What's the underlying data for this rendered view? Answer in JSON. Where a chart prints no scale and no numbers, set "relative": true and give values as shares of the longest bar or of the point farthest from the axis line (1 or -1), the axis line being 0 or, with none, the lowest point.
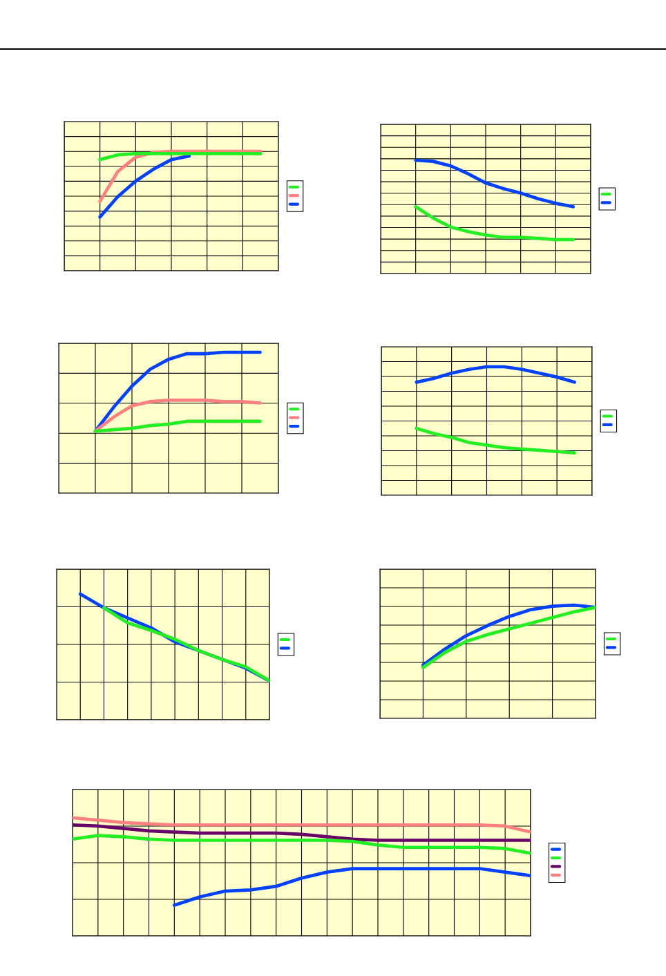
{
  "chart_data": [
    {
      "type": "line",
      "relative": true,
      "grid": true,
      "marker": "none",
      "line_style": "solid",
      "categories": [
        null,
        null,
        null,
        null,
        null,
        null,
        null,
        null,
        null,
        null,
        null,
        null,
        null
      ],
      "series": [
        {
          "color": "#22ee22",
          "values": [
            null,
            null,
            0.93,
            0.97,
            0.98,
            0.98,
            0.98,
            0.98,
            0.98,
            0.98,
            0.98,
            0.98,
            null
          ]
        },
        {
          "color": "#ff8080",
          "values": [
            null,
            null,
            0.58,
            0.83,
            0.95,
            0.99,
            1.0,
            1.0,
            1.0,
            1.0,
            1.0,
            1.0,
            null
          ]
        },
        {
          "color": "#0040ff",
          "values": [
            null,
            null,
            0.45,
            0.62,
            0.75,
            0.85,
            0.93,
            0.96,
            null,
            null,
            null,
            null,
            null
          ]
        }
      ]
    },
    {
      "type": "line",
      "relative": true,
      "grid": true,
      "marker": "none",
      "line_style": "solid",
      "categories": [
        null,
        null,
        null,
        null,
        null,
        null,
        null,
        null,
        null,
        null,
        null,
        null,
        null
      ],
      "series": [
        {
          "color": "#22ee22",
          "values": [
            null,
            null,
            0.59,
            0.49,
            0.41,
            0.37,
            0.34,
            0.32,
            0.32,
            0.31,
            0.3,
            0.3,
            null
          ]
        },
        {
          "color": "#0040ff",
          "values": [
            null,
            null,
            1.0,
            0.99,
            0.95,
            0.88,
            0.8,
            0.75,
            0.71,
            0.66,
            0.62,
            0.59,
            null
          ]
        }
      ]
    },
    {
      "type": "line",
      "relative": true,
      "grid": true,
      "marker": "none",
      "line_style": "solid",
      "categories": [
        null,
        null,
        null,
        null,
        null,
        null,
        null,
        null,
        null,
        null,
        null,
        null,
        null
      ],
      "series": [
        {
          "color": "#22ee22",
          "values": [
            null,
            null,
            0.44,
            0.45,
            0.46,
            0.48,
            0.49,
            0.51,
            0.51,
            0.51,
            0.51,
            0.51,
            null
          ]
        },
        {
          "color": "#ff8080",
          "values": [
            null,
            null,
            0.44,
            0.54,
            0.62,
            0.65,
            0.66,
            0.66,
            0.66,
            0.65,
            0.65,
            0.64,
            null
          ]
        },
        {
          "color": "#0040ff",
          "values": [
            null,
            null,
            0.44,
            0.61,
            0.76,
            0.88,
            0.95,
            0.99,
            0.99,
            1.0,
            1.0,
            1.0,
            null
          ]
        }
      ]
    },
    {
      "type": "line",
      "relative": true,
      "grid": true,
      "marker": "none",
      "line_style": "solid",
      "categories": [
        null,
        null,
        null,
        null,
        null,
        null,
        null,
        null,
        null,
        null,
        null,
        null,
        null
      ],
      "series": [
        {
          "color": "#22ee22",
          "values": [
            null,
            null,
            0.52,
            0.48,
            0.45,
            0.41,
            0.39,
            0.37,
            0.36,
            0.35,
            0.34,
            0.33,
            null
          ]
        },
        {
          "color": "#0040ff",
          "values": [
            null,
            null,
            0.88,
            0.91,
            0.95,
            0.98,
            1.0,
            1.0,
            0.98,
            0.95,
            0.92,
            0.88,
            null
          ]
        }
      ]
    },
    {
      "type": "line",
      "relative": true,
      "grid": true,
      "marker": "none",
      "line_style": "solid",
      "categories": [
        null,
        null,
        null,
        null,
        null,
        null,
        null,
        null,
        null,
        null
      ],
      "series": [
        {
          "color": "#22ee22",
          "values": [
            null,
            null,
            0.89,
            0.77,
            0.71,
            0.64,
            0.55,
            0.48,
            0.42,
            0.31
          ]
        },
        {
          "color": "#0040ff",
          "values": [
            null,
            1.0,
            0.89,
            0.81,
            0.73,
            0.62,
            0.55,
            0.48,
            0.41,
            0.31
          ]
        }
      ]
    },
    {
      "type": "line",
      "relative": true,
      "grid": true,
      "marker": "none",
      "line_style": "solid",
      "categories": [
        null,
        null,
        null,
        null,
        null,
        null,
        null,
        null,
        null,
        null,
        null
      ],
      "series": [
        {
          "color": "#22ee22",
          "values": [
            null,
            null,
            0.45,
            0.58,
            0.68,
            0.74,
            0.79,
            0.84,
            0.89,
            0.94,
            0.98
          ]
        },
        {
          "color": "#0040ff",
          "values": [
            null,
            null,
            0.47,
            0.61,
            0.73,
            0.82,
            0.9,
            0.96,
            0.99,
            1.0,
            0.98
          ]
        }
      ]
    },
    {
      "type": "line",
      "relative": true,
      "grid": true,
      "marker": "none",
      "line_style": "solid",
      "categories": [
        null,
        null,
        null,
        null,
        null,
        null,
        null,
        null,
        null,
        null,
        null,
        null,
        null,
        null,
        null,
        null,
        null,
        null,
        null
      ],
      "series": [
        {
          "color": "#0040ff",
          "values": [
            null,
            null,
            null,
            null,
            0.26,
            0.33,
            0.38,
            0.39,
            0.42,
            0.49,
            0.54,
            0.57,
            0.57,
            0.57,
            0.57,
            0.57,
            0.57,
            0.54,
            0.51
          ]
        },
        {
          "color": "#22ee22",
          "values": [
            0.82,
            0.85,
            0.84,
            0.82,
            0.81,
            0.81,
            0.81,
            0.81,
            0.81,
            0.81,
            0.81,
            0.8,
            0.77,
            0.75,
            0.75,
            0.75,
            0.75,
            0.74,
            0.7
          ]
        },
        {
          "color": "#660066",
          "values": [
            0.94,
            0.93,
            0.91,
            0.89,
            0.88,
            0.87,
            0.87,
            0.87,
            0.87,
            0.86,
            0.84,
            0.82,
            0.81,
            0.81,
            0.81,
            0.81,
            0.81,
            0.81,
            0.81
          ]
        },
        {
          "color": "#ff8080",
          "values": [
            1.0,
            0.98,
            0.96,
            0.95,
            0.94,
            0.94,
            0.94,
            0.94,
            0.94,
            0.94,
            0.94,
            0.94,
            0.94,
            0.94,
            0.94,
            0.94,
            0.94,
            0.93,
            0.88
          ]
        }
      ]
    }
  ]
}
